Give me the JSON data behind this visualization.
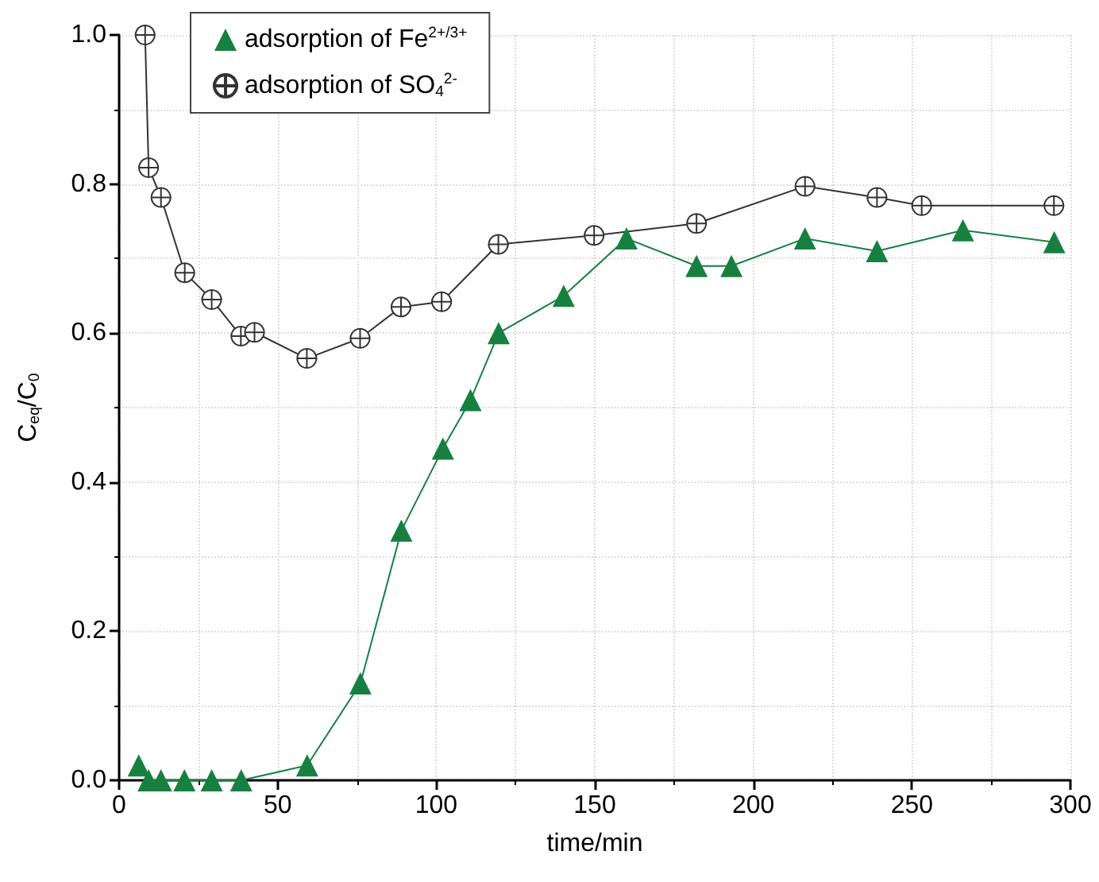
{
  "chart_data": {
    "type": "line",
    "xlabel": "time/min",
    "ylabel": "C$_{eq}$/C$_{0}$",
    "xlim": [
      0,
      300
    ],
    "xticks": [
      0,
      50,
      100,
      150,
      200,
      250,
      300
    ],
    "ylim": [
      0,
      1
    ],
    "yticks": [
      {
        "value": 0,
        "label": "0.0"
      },
      {
        "value": 0.2,
        "label": "0.2"
      },
      {
        "value": 0.4,
        "label": "0.4"
      },
      {
        "value": 0.6,
        "label": "0.6"
      },
      {
        "value": 0.8,
        "label": "0.8"
      },
      {
        "value": 1,
        "label": "1.0"
      }
    ],
    "grid": true,
    "legend": "top left",
    "series": [
      {
        "name": "adsorption of Fe$^{2+/3+}$",
        "color": "#178040",
        "marker": "triangle",
        "x": [
          6.2,
          9.3,
          13.2,
          20.6,
          29.2,
          38.5,
          59.3,
          76.1,
          89,
          102.1,
          110.8,
          119.7,
          140.2,
          160,
          182.1,
          193.1,
          216.3,
          239,
          266.1,
          294.9
        ],
        "values": [
          0.02,
          0,
          0,
          0,
          0,
          0,
          0.02,
          0.13,
          0.335,
          0.445,
          0.51,
          0.6,
          0.65,
          0.727,
          0.69,
          0.69,
          0.727,
          0.71,
          0.738,
          0.722
        ]
      },
      {
        "name": "adsorption of SO$_{4}$$^{2-}$",
        "color": "#333333",
        "marker": "cross",
        "x": [
          8.2,
          9.3,
          13.2,
          20.7,
          29.2,
          38.4,
          42.7,
          59.2,
          76,
          88.9,
          101.7,
          119.6,
          149.8,
          182.1,
          216.3,
          239,
          253.1,
          294.8
        ],
        "values": [
          1,
          0.822,
          0.782,
          0.681,
          0.645,
          0.596,
          0.601,
          0.566,
          0.593,
          0.635,
          0.642,
          0.719,
          0.731,
          0.747,
          0.797,
          0.782,
          0.771,
          0.771
        ]
      }
    ]
  }
}
